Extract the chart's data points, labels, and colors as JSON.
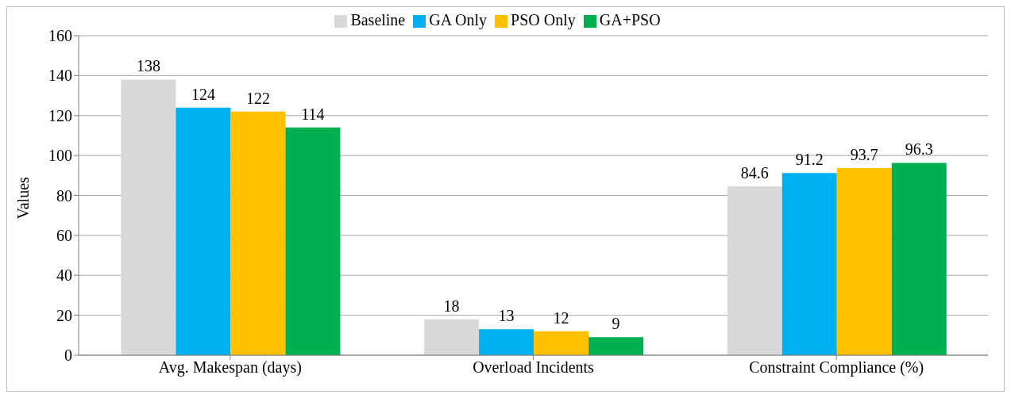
{
  "chart_data": {
    "type": "bar",
    "ylabel": "Values",
    "categories": [
      "Avg. Makespan (days)",
      "Overload Incidents",
      "Constraint Compliance (%)"
    ],
    "series": [
      {
        "name": "Baseline",
        "color": "#d9d9d9",
        "values": [
          138,
          18,
          84.6
        ]
      },
      {
        "name": "GA Only",
        "color": "#00b0f0",
        "values": [
          124,
          13,
          91.2
        ]
      },
      {
        "name": "PSO Only",
        "color": "#ffc000",
        "values": [
          122,
          12,
          93.7
        ]
      },
      {
        "name": "GA+PSO",
        "color": "#00b050",
        "values": [
          114,
          9,
          96.3
        ]
      }
    ],
    "ylim": [
      0,
      160
    ],
    "yticks": [
      0,
      20,
      40,
      60,
      80,
      100,
      120,
      140,
      160
    ],
    "grid": "y",
    "legend": "top",
    "data_labels": true
  }
}
